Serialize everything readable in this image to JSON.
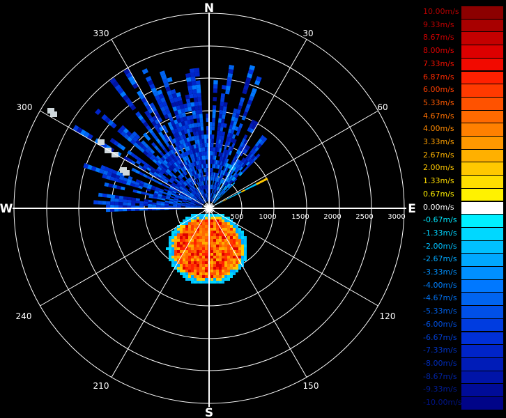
{
  "compass": {
    "north": "N",
    "south": "S",
    "east": "E",
    "west": "W"
  },
  "bearing_labels": [
    "30",
    "60",
    "120",
    "150",
    "210",
    "240",
    "300",
    "330"
  ],
  "range_labels": [
    "500",
    "1000",
    "1500",
    "2000",
    "2500",
    "3000"
  ],
  "legend": [
    {
      "label": "10.00m/s",
      "color": "#8c0000",
      "text_color": "#b30000"
    },
    {
      "label": "9.33m/s",
      "color": "#a80000",
      "text_color": "#c00000"
    },
    {
      "label": "8.67m/s",
      "color": "#c40000",
      "text_color": "#d00000"
    },
    {
      "label": "8.00m/s",
      "color": "#dd0000",
      "text_color": "#e00000"
    },
    {
      "label": "7.33m/s",
      "color": "#f20a00",
      "text_color": "#f01000"
    },
    {
      "label": "6.87m/s",
      "color": "#ff2000",
      "text_color": "#ff2a00"
    },
    {
      "label": "6.00m/s",
      "color": "#ff3a00",
      "text_color": "#ff4000"
    },
    {
      "label": "5.33m/s",
      "color": "#ff5200",
      "text_color": "#ff5a00"
    },
    {
      "label": "4.67m/s",
      "color": "#ff6a00",
      "text_color": "#ff7000"
    },
    {
      "label": "4.00m/s",
      "color": "#ff8000",
      "text_color": "#ff8a00"
    },
    {
      "label": "3.33m/s",
      "color": "#ff9800",
      "text_color": "#ffa000"
    },
    {
      "label": "2.67m/s",
      "color": "#ffb000",
      "text_color": "#ffb400"
    },
    {
      "label": "2.00m/s",
      "color": "#ffc800",
      "text_color": "#ffc800"
    },
    {
      "label": "1.33m/s",
      "color": "#ffdf00",
      "text_color": "#ffdc00"
    },
    {
      "label": "0.67m/s",
      "color": "#fff200",
      "text_color": "#fff000"
    },
    {
      "label": "0.00m/s",
      "color": "#ffffff",
      "text_color": "#ffffff"
    },
    {
      "label": "-0.67m/s",
      "color": "#00f0ff",
      "text_color": "#00e8ff"
    },
    {
      "label": "-1.33m/s",
      "color": "#00d8ff",
      "text_color": "#00d4ff"
    },
    {
      "label": "-2.00m/s",
      "color": "#00c0ff",
      "text_color": "#00c0ff"
    },
    {
      "label": "-2.67m/s",
      "color": "#00a8ff",
      "text_color": "#00a8ff"
    },
    {
      "label": "-3.33m/s",
      "color": "#0090ff",
      "text_color": "#0090ff"
    },
    {
      "label": "-4.00m/s",
      "color": "#0078ff",
      "text_color": "#0080ff"
    },
    {
      "label": "-4.67m/s",
      "color": "#0064f0",
      "text_color": "#0070f0"
    },
    {
      "label": "-5.33m/s",
      "color": "#0050e8",
      "text_color": "#0060e8"
    },
    {
      "label": "-6.00m/s",
      "color": "#003ce0",
      "text_color": "#0050e0"
    },
    {
      "label": "-6.67m/s",
      "color": "#0030d8",
      "text_color": "#0040d8"
    },
    {
      "label": "-7.33m/s",
      "color": "#0024c8",
      "text_color": "#0034c8"
    },
    {
      "label": "-8.00m/s",
      "color": "#001cb8",
      "text_color": "#002cb8"
    },
    {
      "label": "-8.67m/s",
      "color": "#0014a8",
      "text_color": "#0024a8"
    },
    {
      "label": "-9.33m/s",
      "color": "#000c98",
      "text_color": "#001c98"
    },
    {
      "label": "-10.00m/s",
      "color": "#000488",
      "text_color": "#001488"
    }
  ]
}
